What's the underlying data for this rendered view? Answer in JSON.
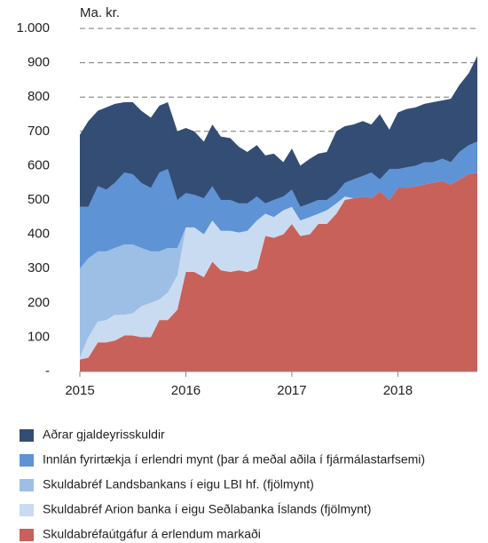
{
  "chart_data": {
    "type": "stacked_area",
    "y_label": "Ma. kr.",
    "x": [
      2015,
      2015.08,
      2015.17,
      2015.25,
      2015.33,
      2015.42,
      2015.5,
      2015.58,
      2015.67,
      2015.75,
      2015.83,
      2015.92,
      2016,
      2016.08,
      2016.17,
      2016.25,
      2016.33,
      2016.42,
      2016.5,
      2016.58,
      2016.67,
      2016.75,
      2016.83,
      2016.92,
      2017,
      2017.08,
      2017.17,
      2017.25,
      2017.33,
      2017.42,
      2017.5,
      2017.58,
      2017.67,
      2017.75,
      2017.83,
      2017.92,
      2018,
      2018.08,
      2018.17,
      2018.25,
      2018.33,
      2018.42,
      2018.5,
      2018.58,
      2018.67,
      2018.75
    ],
    "xlim": [
      2015,
      2018.75
    ],
    "xticks": [
      2015,
      2016,
      2017,
      2018
    ],
    "ylim": [
      0,
      1000
    ],
    "yticks": [
      {
        "value": 0,
        "label": "-"
      },
      100,
      200,
      300,
      400,
      500,
      600,
      700,
      800,
      900,
      {
        "value": 1000,
        "label": "1.000"
      }
    ],
    "grid": true,
    "series": [
      {
        "name": "Skuldabréfaútgáfur á erlendum markaði",
        "color": "#c9615b",
        "values": [
          35,
          40,
          85,
          85,
          90,
          105,
          105,
          100,
          100,
          150,
          150,
          180,
          290,
          290,
          275,
          320,
          295,
          290,
          295,
          290,
          300,
          395,
          390,
          400,
          430,
          395,
          400,
          430,
          430,
          460,
          500,
          505,
          510,
          505,
          525,
          500,
          535,
          535,
          540,
          545,
          550,
          555,
          545,
          560,
          575,
          580
        ]
      },
      {
        "name": "Skuldabréf Arion banka í eigu Seðlabanka Íslands (fjölmynt)",
        "color": "#c9dbf1",
        "values": [
          5,
          60,
          60,
          65,
          75,
          60,
          65,
          90,
          100,
          60,
          80,
          100,
          130,
          130,
          125,
          120,
          115,
          120,
          110,
          120,
          140,
          65,
          60,
          70,
          50,
          45,
          50,
          30,
          40,
          30,
          10,
          0,
          0,
          0,
          0,
          0,
          0,
          0,
          0,
          0,
          0,
          0,
          0,
          0,
          0,
          0
        ]
      },
      {
        "name": "Skuldabréf Landsbankans í eigu LBI hf. (fjölmynt)",
        "color": "#9dbfe6",
        "values": [
          260,
          230,
          205,
          200,
          195,
          205,
          200,
          170,
          150,
          140,
          130,
          80,
          0,
          0,
          0,
          0,
          0,
          0,
          0,
          0,
          0,
          0,
          0,
          0,
          0,
          0,
          0,
          0,
          0,
          0,
          0,
          0,
          0,
          0,
          0,
          0,
          0,
          0,
          0,
          0,
          0,
          0,
          0,
          0,
          0,
          0
        ]
      },
      {
        "name": "Innlán fyrirtækja í erlendri mynt (þar á meðal aðila í fjármálastarfsemi)",
        "color": "#5e93d6",
        "values": [
          180,
          150,
          190,
          180,
          190,
          210,
          205,
          190,
          185,
          230,
          230,
          140,
          100,
          95,
          105,
          100,
          90,
          90,
          85,
          80,
          70,
          30,
          50,
          40,
          50,
          40,
          40,
          40,
          30,
          30,
          40,
          55,
          60,
          75,
          35,
          90,
          55,
          60,
          60,
          65,
          60,
          65,
          65,
          80,
          85,
          90
        ]
      },
      {
        "name": "Aðrar gjaldeyrisskuldir",
        "color": "#344d74",
        "values": [
          210,
          250,
          220,
          240,
          230,
          205,
          210,
          210,
          205,
          195,
          195,
          200,
          190,
          185,
          165,
          180,
          185,
          180,
          165,
          150,
          150,
          140,
          135,
          100,
          120,
          120,
          130,
          135,
          140,
          180,
          165,
          160,
          160,
          140,
          190,
          115,
          165,
          170,
          170,
          170,
          175,
          170,
          185,
          195,
          210,
          250
        ]
      }
    ]
  }
}
